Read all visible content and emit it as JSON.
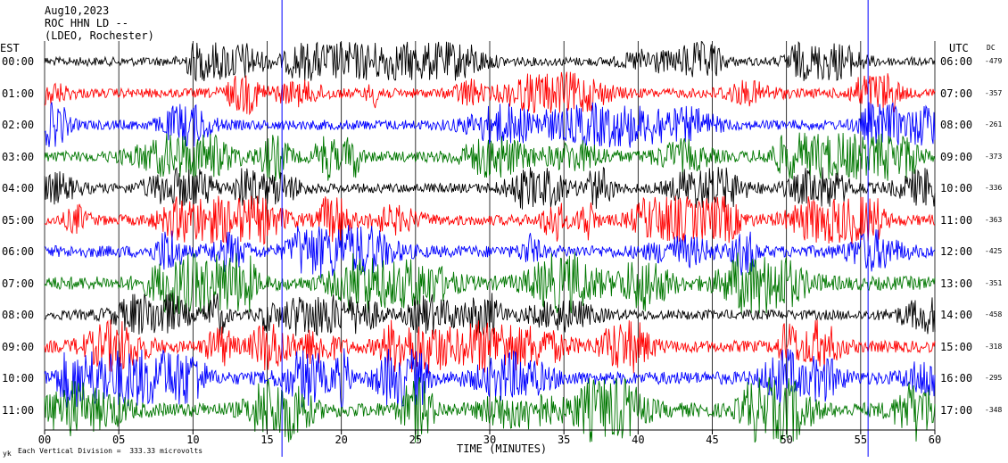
{
  "header": {
    "date": "Aug10,2023",
    "station": "ROC HHN LD --",
    "network": "(LDEO, Rochester)"
  },
  "footer": {
    "vertical_division": "Each Vertical Division =  333.33 microvolts",
    "corner_mark": "yk"
  },
  "chart_data": {
    "type": "line",
    "title": "",
    "xlabel": "TIME (MINUTES)",
    "left_axis_label": "EST",
    "right_axis_label": "UTC",
    "dc_label": "DC",
    "xlim": [
      0,
      60
    ],
    "x_ticks": [
      "00",
      "05",
      "10",
      "15",
      "20",
      "25",
      "30",
      "35",
      "40",
      "45",
      "50",
      "55",
      "60"
    ],
    "grid": true,
    "rows": [
      {
        "est": "00:00",
        "utc": "06:00",
        "dc": "-479",
        "color": "#000000",
        "amp": 14
      },
      {
        "est": "01:00",
        "utc": "07:00",
        "dc": "-357",
        "color": "#ff0000",
        "amp": 15
      },
      {
        "est": "02:00",
        "utc": "08:00",
        "dc": "-261",
        "color": "#0000ff",
        "amp": 16
      },
      {
        "est": "03:00",
        "utc": "09:00",
        "dc": "-373",
        "color": "#007700",
        "amp": 17
      },
      {
        "est": "04:00",
        "utc": "10:00",
        "dc": "-336",
        "color": "#000000",
        "amp": 15
      },
      {
        "est": "05:00",
        "utc": "11:00",
        "dc": "-363",
        "color": "#ff0000",
        "amp": 17
      },
      {
        "est": "06:00",
        "utc": "12:00",
        "dc": "-425",
        "color": "#0000ff",
        "amp": 19
      },
      {
        "est": "07:00",
        "utc": "13:00",
        "dc": "-351",
        "color": "#007700",
        "amp": 22
      },
      {
        "est": "08:00",
        "utc": "14:00",
        "dc": "-458",
        "color": "#000000",
        "amp": 16
      },
      {
        "est": "09:00",
        "utc": "15:00",
        "dc": "-318",
        "color": "#ff0000",
        "amp": 19
      },
      {
        "est": "10:00",
        "utc": "16:00",
        "dc": "-295",
        "color": "#0000ff",
        "amp": 21
      },
      {
        "est": "11:00",
        "utc": "17:00",
        "dc": "-348",
        "color": "#007700",
        "amp": 23
      }
    ],
    "marker_lines_minutes": [
      16,
      55.5
    ]
  }
}
